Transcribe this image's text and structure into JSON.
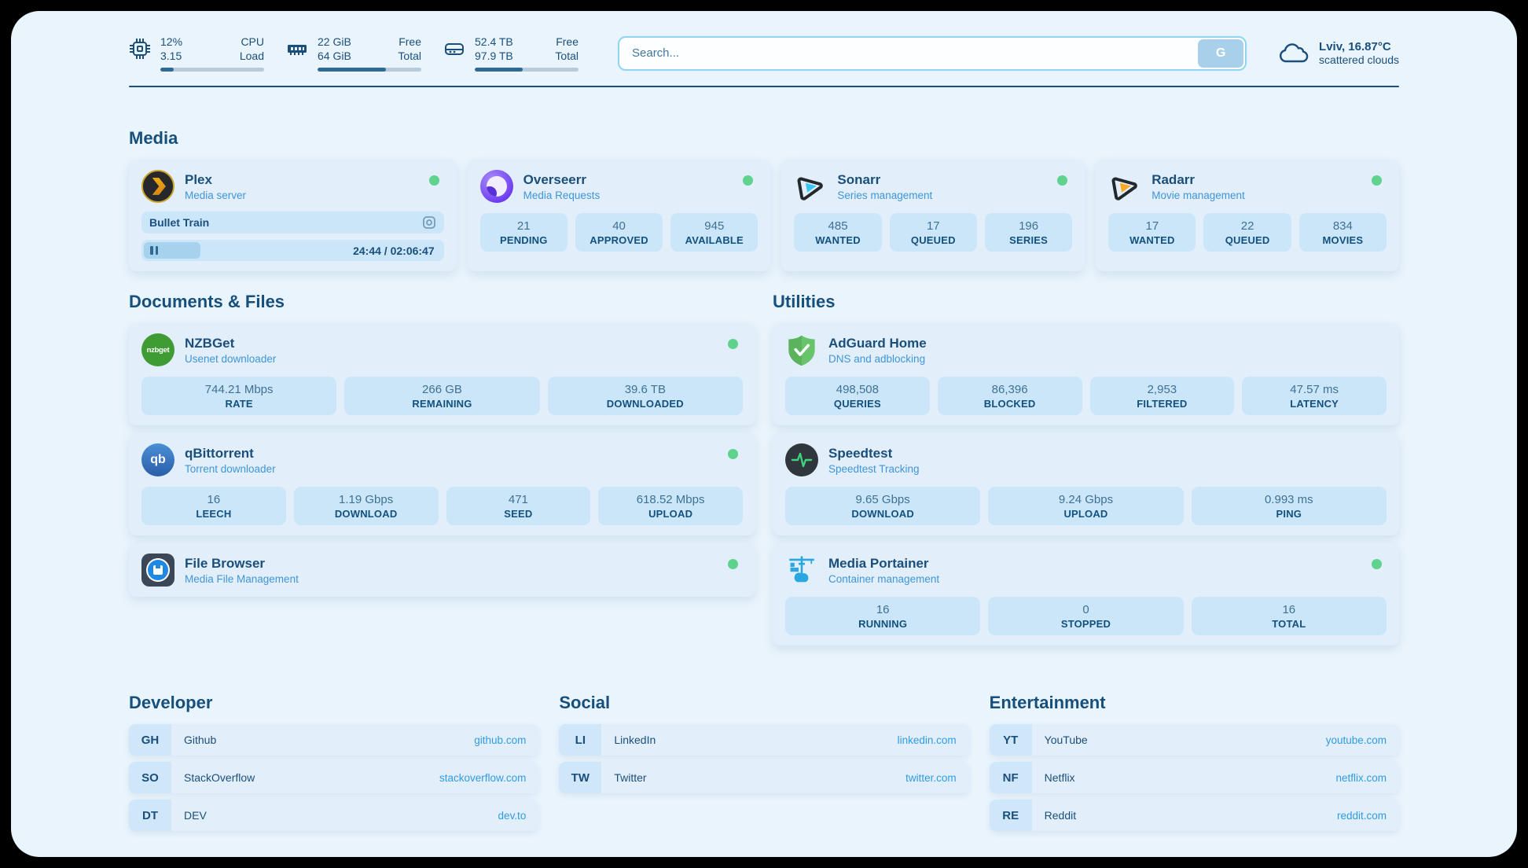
{
  "colors": {
    "accent": "#2f9ce2",
    "status_online": "#5fd38d",
    "title": "#1b4f7b"
  },
  "header": {
    "resources": [
      {
        "icon": "cpu-icon",
        "value1": "12%",
        "label1": "CPU",
        "value2": "3.15",
        "label2": "Load",
        "progress": 13
      },
      {
        "icon": "ram-icon",
        "value1": "22 GiB",
        "label1": "Free",
        "value2": "64 GiB",
        "label2": "Total",
        "progress": 66
      },
      {
        "icon": "disk-icon",
        "value1": "52.4 TB",
        "label1": "Free",
        "value2": "97.9 TB",
        "label2": "Total",
        "progress": 46
      }
    ],
    "search": {
      "placeholder": "Search...",
      "button_label": "G"
    },
    "weather": {
      "location": "Lviv, 16.87°C",
      "condition": "scattered clouds"
    }
  },
  "media": {
    "title": "Media",
    "plex": {
      "name": "Plex",
      "desc": "Media server",
      "now_playing": "Bullet Train",
      "time": "24:44 / 02:06:47",
      "progress": 19
    },
    "apps": [
      {
        "name": "Overseerr",
        "desc": "Media Requests",
        "stats": [
          {
            "value": "21",
            "label": "PENDING"
          },
          {
            "value": "40",
            "label": "APPROVED"
          },
          {
            "value": "945",
            "label": "AVAILABLE"
          }
        ]
      },
      {
        "name": "Sonarr",
        "desc": "Series management",
        "stats": [
          {
            "value": "485",
            "label": "WANTED"
          },
          {
            "value": "17",
            "label": "QUEUED"
          },
          {
            "value": "196",
            "label": "SERIES"
          }
        ]
      },
      {
        "name": "Radarr",
        "desc": "Movie management",
        "stats": [
          {
            "value": "17",
            "label": "WANTED"
          },
          {
            "value": "22",
            "label": "QUEUED"
          },
          {
            "value": "834",
            "label": "MOVIES"
          }
        ]
      }
    ]
  },
  "documents": {
    "title": "Documents & Files",
    "apps": [
      {
        "name": "NZBGet",
        "desc": "Usenet downloader",
        "icon_text": "nzbget",
        "stats": [
          {
            "value": "744.21 Mbps",
            "label": "RATE"
          },
          {
            "value": "266 GB",
            "label": "REMAINING"
          },
          {
            "value": "39.6 TB",
            "label": "DOWNLOADED"
          }
        ]
      },
      {
        "name": "qBittorrent",
        "desc": "Torrent downloader",
        "icon_text": "qb",
        "stats": [
          {
            "value": "16",
            "label": "LEECH"
          },
          {
            "value": "1.19 Gbps",
            "label": "DOWNLOAD"
          },
          {
            "value": "471",
            "label": "SEED"
          },
          {
            "value": "618.52 Mbps",
            "label": "UPLOAD"
          }
        ]
      },
      {
        "name": "File Browser",
        "desc": "Media File Management",
        "stats": []
      }
    ]
  },
  "utilities": {
    "title": "Utilities",
    "apps": [
      {
        "name": "AdGuard Home",
        "desc": "DNS and adblocking",
        "stats": [
          {
            "value": "498,508",
            "label": "QUERIES"
          },
          {
            "value": "86,396",
            "label": "BLOCKED"
          },
          {
            "value": "2,953",
            "label": "FILTERED"
          },
          {
            "value": "47.57 ms",
            "label": "LATENCY"
          }
        ]
      },
      {
        "name": "Speedtest",
        "desc": "Speedtest Tracking",
        "stats": [
          {
            "value": "9.65 Gbps",
            "label": "DOWNLOAD"
          },
          {
            "value": "9.24 Gbps",
            "label": "UPLOAD"
          },
          {
            "value": "0.993 ms",
            "label": "PING"
          }
        ]
      },
      {
        "name": "Media Portainer",
        "desc": "Container management",
        "stats": [
          {
            "value": "16",
            "label": "RUNNING"
          },
          {
            "value": "0",
            "label": "STOPPED"
          },
          {
            "value": "16",
            "label": "TOTAL"
          }
        ]
      }
    ]
  },
  "bookmarks": [
    {
      "title": "Developer",
      "links": [
        {
          "abbr": "GH",
          "name": "Github",
          "url": "github.com"
        },
        {
          "abbr": "SO",
          "name": "StackOverflow",
          "url": "stackoverflow.com"
        },
        {
          "abbr": "DT",
          "name": "DEV",
          "url": "dev.to"
        }
      ]
    },
    {
      "title": "Social",
      "links": [
        {
          "abbr": "LI",
          "name": "LinkedIn",
          "url": "linkedin.com"
        },
        {
          "abbr": "TW",
          "name": "Twitter",
          "url": "twitter.com"
        }
      ]
    },
    {
      "title": "Entertainment",
      "links": [
        {
          "abbr": "YT",
          "name": "YouTube",
          "url": "youtube.com"
        },
        {
          "abbr": "NF",
          "name": "Netflix",
          "url": "netflix.com"
        },
        {
          "abbr": "RE",
          "name": "Reddit",
          "url": "reddit.com"
        }
      ]
    }
  ]
}
